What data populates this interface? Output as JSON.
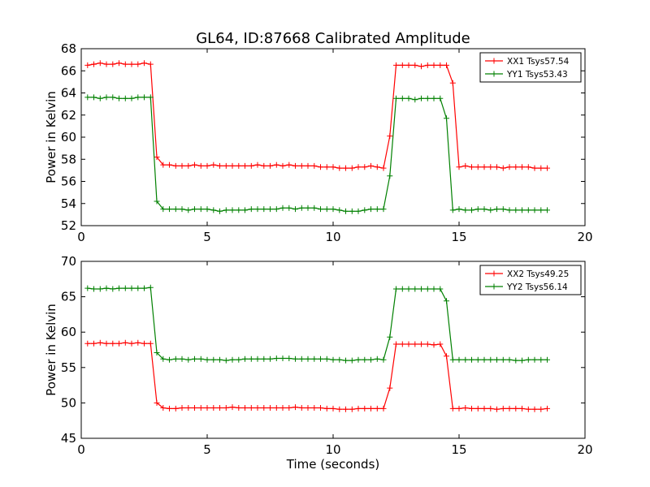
{
  "title": "GL64, ID:87668 Calibrated Amplitude",
  "colors": {
    "red": "#ff0000",
    "green": "#008000"
  },
  "chart_data": [
    {
      "type": "line",
      "ylabel": "Power in Kelvin",
      "xlabel": "",
      "xlim": [
        0,
        20
      ],
      "ylim": [
        52,
        68
      ],
      "xticks": [
        0,
        5,
        10,
        15,
        20
      ],
      "yticks": [
        52,
        54,
        56,
        58,
        60,
        62,
        64,
        66,
        68
      ],
      "legend_position": "top-right",
      "x": [
        0.25,
        0.5,
        0.75,
        1.0,
        1.25,
        1.5,
        1.75,
        2.0,
        2.25,
        2.5,
        2.75,
        3.0,
        3.25,
        3.5,
        3.75,
        4.0,
        4.25,
        4.5,
        4.75,
        5.0,
        5.25,
        5.5,
        5.75,
        6.0,
        6.25,
        6.5,
        6.75,
        7.0,
        7.25,
        7.5,
        7.75,
        8.0,
        8.25,
        8.5,
        8.75,
        9.0,
        9.25,
        9.5,
        9.75,
        10.0,
        10.25,
        10.5,
        10.75,
        11.0,
        11.25,
        11.5,
        11.75,
        12.0,
        12.25,
        12.5,
        12.75,
        13.0,
        13.25,
        13.5,
        13.75,
        14.0,
        14.25,
        14.5,
        14.75,
        15.0,
        15.25,
        15.5,
        15.75,
        16.0,
        16.25,
        16.5,
        16.75,
        17.0,
        17.25,
        17.5,
        17.75,
        18.0,
        18.25,
        18.5
      ],
      "series": [
        {
          "name": "XX1 Tsys57.54",
          "color": "#ff0000",
          "values": [
            66.5,
            66.6,
            66.7,
            66.6,
            66.6,
            66.7,
            66.6,
            66.6,
            66.6,
            66.7,
            66.6,
            58.2,
            57.5,
            57.5,
            57.4,
            57.4,
            57.4,
            57.5,
            57.4,
            57.4,
            57.5,
            57.4,
            57.4,
            57.4,
            57.4,
            57.4,
            57.4,
            57.5,
            57.4,
            57.4,
            57.5,
            57.4,
            57.5,
            57.4,
            57.4,
            57.4,
            57.4,
            57.3,
            57.3,
            57.3,
            57.2,
            57.2,
            57.2,
            57.3,
            57.3,
            57.4,
            57.3,
            57.2,
            60.1,
            66.5,
            66.5,
            66.5,
            66.5,
            66.4,
            66.5,
            66.5,
            66.5,
            66.5,
            64.9,
            57.3,
            57.4,
            57.3,
            57.3,
            57.3,
            57.3,
            57.3,
            57.2,
            57.3,
            57.3,
            57.3,
            57.3,
            57.2,
            57.2,
            57.2
          ]
        },
        {
          "name": "YY1 Tsys53.43",
          "color": "#008000",
          "values": [
            63.6,
            63.6,
            63.5,
            63.6,
            63.6,
            63.5,
            63.5,
            63.5,
            63.6,
            63.6,
            63.6,
            54.2,
            53.5,
            53.5,
            53.5,
            53.5,
            53.4,
            53.5,
            53.5,
            53.5,
            53.4,
            53.3,
            53.4,
            53.4,
            53.4,
            53.4,
            53.5,
            53.5,
            53.5,
            53.5,
            53.5,
            53.6,
            53.6,
            53.5,
            53.6,
            53.6,
            53.6,
            53.5,
            53.5,
            53.5,
            53.4,
            53.3,
            53.3,
            53.3,
            53.4,
            53.5,
            53.5,
            53.5,
            56.5,
            63.5,
            63.5,
            63.5,
            63.4,
            63.5,
            63.5,
            63.5,
            63.5,
            61.7,
            53.4,
            53.5,
            53.4,
            53.4,
            53.5,
            53.5,
            53.4,
            53.5,
            53.5,
            53.4,
            53.4,
            53.4,
            53.4,
            53.4,
            53.4,
            53.4
          ]
        }
      ]
    },
    {
      "type": "line",
      "ylabel": "Power in Kelvin",
      "xlabel": "Time (seconds)",
      "xlim": [
        0,
        20
      ],
      "ylim": [
        45,
        70
      ],
      "xticks": [
        0,
        5,
        10,
        15,
        20
      ],
      "yticks": [
        45,
        50,
        55,
        60,
        65,
        70
      ],
      "legend_position": "top-right",
      "x": [
        0.25,
        0.5,
        0.75,
        1.0,
        1.25,
        1.5,
        1.75,
        2.0,
        2.25,
        2.5,
        2.75,
        3.0,
        3.25,
        3.5,
        3.75,
        4.0,
        4.25,
        4.5,
        4.75,
        5.0,
        5.25,
        5.5,
        5.75,
        6.0,
        6.25,
        6.5,
        6.75,
        7.0,
        7.25,
        7.5,
        7.75,
        8.0,
        8.25,
        8.5,
        8.75,
        9.0,
        9.25,
        9.5,
        9.75,
        10.0,
        10.25,
        10.5,
        10.75,
        11.0,
        11.25,
        11.5,
        11.75,
        12.0,
        12.25,
        12.5,
        12.75,
        13.0,
        13.25,
        13.5,
        13.75,
        14.0,
        14.25,
        14.5,
        14.75,
        15.0,
        15.25,
        15.5,
        15.75,
        16.0,
        16.25,
        16.5,
        16.75,
        17.0,
        17.25,
        17.5,
        17.75,
        18.0,
        18.25,
        18.5
      ],
      "series": [
        {
          "name": "XX2 Tsys49.25",
          "color": "#ff0000",
          "values": [
            58.4,
            58.4,
            58.5,
            58.4,
            58.4,
            58.4,
            58.5,
            58.4,
            58.5,
            58.4,
            58.4,
            50.0,
            49.3,
            49.2,
            49.2,
            49.3,
            49.3,
            49.3,
            49.3,
            49.3,
            49.3,
            49.3,
            49.3,
            49.4,
            49.3,
            49.3,
            49.3,
            49.3,
            49.3,
            49.3,
            49.3,
            49.3,
            49.3,
            49.4,
            49.3,
            49.3,
            49.3,
            49.3,
            49.2,
            49.2,
            49.1,
            49.1,
            49.1,
            49.2,
            49.2,
            49.2,
            49.2,
            49.2,
            52.1,
            58.3,
            58.3,
            58.3,
            58.3,
            58.3,
            58.3,
            58.2,
            58.3,
            56.6,
            49.2,
            49.2,
            49.3,
            49.2,
            49.2,
            49.2,
            49.2,
            49.1,
            49.2,
            49.2,
            49.2,
            49.2,
            49.1,
            49.1,
            49.1,
            49.2
          ]
        },
        {
          "name": "YY2 Tsys56.14",
          "color": "#008000",
          "values": [
            66.2,
            66.1,
            66.1,
            66.2,
            66.1,
            66.2,
            66.2,
            66.2,
            66.2,
            66.2,
            66.3,
            57.1,
            56.2,
            56.1,
            56.2,
            56.2,
            56.1,
            56.2,
            56.2,
            56.1,
            56.1,
            56.1,
            56.0,
            56.1,
            56.1,
            56.2,
            56.2,
            56.2,
            56.2,
            56.2,
            56.3,
            56.3,
            56.3,
            56.2,
            56.2,
            56.2,
            56.2,
            56.2,
            56.2,
            56.1,
            56.1,
            56.0,
            56.0,
            56.1,
            56.1,
            56.1,
            56.2,
            56.1,
            59.3,
            66.1,
            66.1,
            66.1,
            66.1,
            66.1,
            66.1,
            66.1,
            66.1,
            64.4,
            56.1,
            56.1,
            56.1,
            56.1,
            56.1,
            56.1,
            56.1,
            56.1,
            56.1,
            56.1,
            56.0,
            56.0,
            56.1,
            56.1,
            56.1,
            56.1
          ]
        }
      ]
    }
  ]
}
